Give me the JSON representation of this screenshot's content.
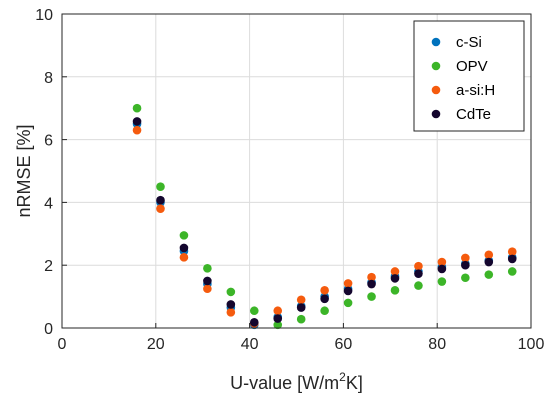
{
  "chart_data": {
    "type": "scatter",
    "xlabel": {
      "pre": "U-value [W/m",
      "sup": "2",
      "post": "K]"
    },
    "ylabel": "nRMSE [%]",
    "xlim": [
      0,
      100
    ],
    "ylim": [
      0,
      10
    ],
    "xticks": [
      0,
      20,
      40,
      60,
      80,
      100
    ],
    "yticks": [
      0,
      2,
      4,
      6,
      8,
      10
    ],
    "grid": true,
    "legend_position": "top-right",
    "x": [
      16,
      21,
      26,
      31,
      36,
      41,
      46,
      51,
      56,
      61,
      66,
      71,
      76,
      81,
      86,
      91,
      96
    ],
    "series": [
      {
        "name": "c-Si",
        "color": "#0072BD",
        "values": [
          6.5,
          4.0,
          2.45,
          1.4,
          0.65,
          0.1,
          0.35,
          0.7,
          1.0,
          1.25,
          1.45,
          1.65,
          1.8,
          1.95,
          2.05,
          2.15,
          2.25
        ]
      },
      {
        "name": "OPV",
        "color": "#3CB528",
        "values": [
          7.0,
          4.5,
          2.95,
          1.9,
          1.15,
          0.55,
          0.1,
          0.28,
          0.55,
          0.8,
          1.0,
          1.2,
          1.35,
          1.48,
          1.6,
          1.7,
          1.8
        ]
      },
      {
        "name": "a-si:H",
        "color": "#F55B0E",
        "values": [
          6.3,
          3.8,
          2.25,
          1.25,
          0.5,
          0.15,
          0.55,
          0.9,
          1.2,
          1.42,
          1.62,
          1.8,
          1.97,
          2.1,
          2.23,
          2.33,
          2.43
        ]
      },
      {
        "name": "CdTe",
        "color": "#14062E",
        "values": [
          6.58,
          4.07,
          2.55,
          1.5,
          0.75,
          0.18,
          0.3,
          0.65,
          0.93,
          1.18,
          1.4,
          1.58,
          1.73,
          1.88,
          2.0,
          2.1,
          2.2
        ]
      }
    ]
  }
}
